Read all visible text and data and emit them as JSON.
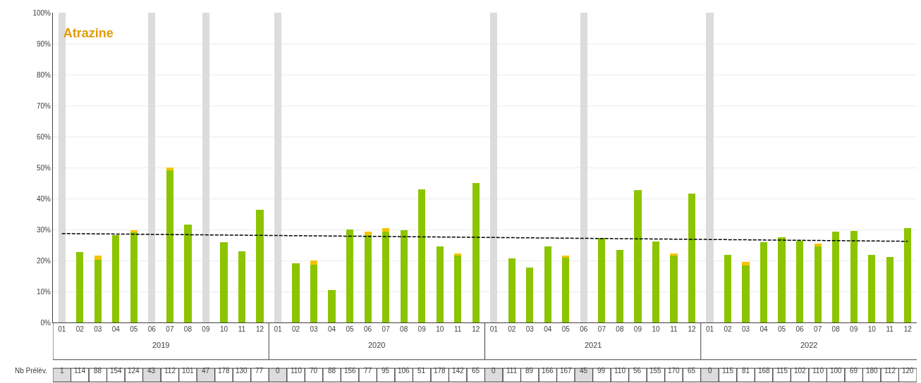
{
  "chart_data": {
    "type": "bar",
    "title": "Atrazine",
    "stacked": true,
    "categories": [
      "01",
      "02",
      "03",
      "04",
      "05",
      "06",
      "07",
      "08",
      "09",
      "10",
      "11",
      "12",
      "01",
      "02",
      "03",
      "04",
      "05",
      "06",
      "07",
      "08",
      "09",
      "10",
      "11",
      "12",
      "01",
      "02",
      "03",
      "04",
      "05",
      "06",
      "07",
      "08",
      "09",
      "10",
      "11",
      "12",
      "01",
      "02",
      "03",
      "04",
      "05",
      "06",
      "07",
      "08",
      "09",
      "10",
      "11",
      "12"
    ],
    "series": [
      {
        "color": "#dcdcdc",
        "values": [
          100,
          null,
          null,
          null,
          null,
          100,
          null,
          null,
          100,
          null,
          null,
          null,
          100,
          null,
          null,
          null,
          null,
          null,
          null,
          null,
          null,
          null,
          null,
          null,
          100,
          null,
          null,
          null,
          null,
          100,
          null,
          null,
          null,
          null,
          null,
          null,
          100,
          null,
          null,
          null,
          null,
          null,
          null,
          null,
          null,
          null,
          null,
          null
        ]
      },
      {
        "color": "#8cc400",
        "values": [
          null,
          22.7,
          20.2,
          28.2,
          29.1,
          null,
          49.2,
          31.7,
          null,
          25.8,
          23,
          36.3,
          null,
          19.1,
          18.6,
          10.5,
          30,
          28.1,
          29.3,
          29.8,
          43,
          24.6,
          21.5,
          45,
          null,
          20.6,
          17.7,
          24.5,
          21,
          null,
          27.2,
          23.5,
          42.7,
          26.1,
          21.7,
          41.5,
          null,
          21.9,
          18.3,
          25.9,
          27.6,
          26.3,
          24.5,
          29.3,
          29.5,
          21.8,
          21.2,
          30.5
        ]
      },
      {
        "color": "#f5c400",
        "values": [
          null,
          null,
          1.3,
          null,
          0.7,
          null,
          0.8,
          null,
          null,
          null,
          null,
          null,
          null,
          null,
          1.4,
          null,
          null,
          1.2,
          1.2,
          null,
          null,
          null,
          0.8,
          null,
          null,
          null,
          null,
          null,
          0.7,
          null,
          null,
          null,
          null,
          null,
          0.6,
          null,
          null,
          null,
          1.2,
          null,
          null,
          null,
          1.0,
          null,
          null,
          null,
          null,
          null
        ]
      },
      {
        "type": "line",
        "color": "#000000",
        "line_style": "dashed",
        "values": [
          28.7,
          null,
          null,
          null,
          null,
          null,
          null,
          null,
          null,
          null,
          null,
          null,
          null,
          null,
          null,
          null,
          null,
          null,
          null,
          null,
          null,
          null,
          null,
          null,
          null,
          null,
          null,
          null,
          null,
          null,
          null,
          null,
          null,
          null,
          null,
          null,
          null,
          null,
          null,
          null,
          null,
          null,
          null,
          null,
          null,
          null,
          null,
          26.2
        ]
      }
    ],
    "ylim": [
      0,
      100
    ],
    "yticks": [
      {
        "value": 0,
        "label": "0%"
      },
      {
        "value": 10,
        "label": "10%"
      },
      {
        "value": 20,
        "label": "20%"
      },
      {
        "value": 30,
        "label": "30%"
      },
      {
        "value": 40,
        "label": "40%"
      },
      {
        "value": 50,
        "label": "50%"
      },
      {
        "value": 60,
        "label": "60%"
      },
      {
        "value": 70,
        "label": "70%"
      },
      {
        "value": 80,
        "label": "80%"
      },
      {
        "value": 90,
        "label": "90%"
      },
      {
        "value": 100,
        "label": "100%"
      }
    ],
    "grid": "y",
    "marker": "none",
    "annotations": [
      "2019",
      "2020",
      "2021",
      "2022",
      "Nb Prélèv.",
      "1",
      "114",
      "88",
      "154",
      "124",
      "43",
      "112",
      "101",
      "47",
      "178",
      "130",
      "77",
      "0",
      "110",
      "70",
      "88",
      "156",
      "77",
      "95",
      "106",
      "51",
      "178",
      "142",
      "65",
      "0",
      "111",
      "89",
      "166",
      "167",
      "45",
      "99",
      "110",
      "56",
      "155",
      "170",
      "65",
      "0",
      "115",
      "81",
      "168",
      "115",
      "102",
      "110",
      "100",
      "69",
      "180",
      "112",
      "120"
    ]
  }
}
